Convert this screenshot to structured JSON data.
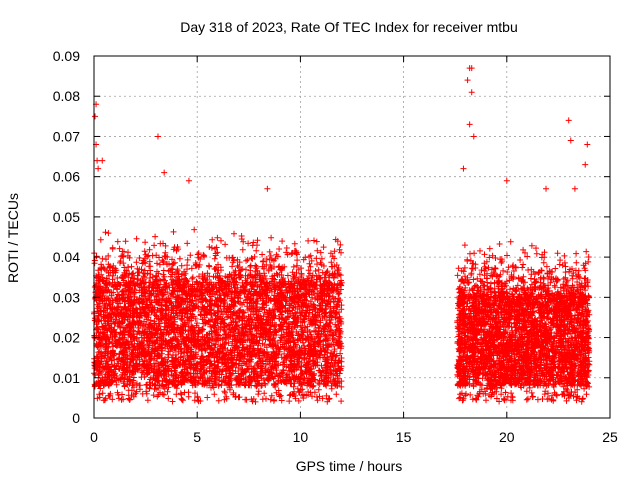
{
  "chart_data": {
    "type": "scatter",
    "title": "Day 318 of 2023, Rate Of TEC Index for receiver mtbu",
    "xlabel": "GPS time / hours",
    "ylabel": "ROTI / TECUs",
    "xlim": [
      0,
      25
    ],
    "ylim": [
      0,
      0.09
    ],
    "xticks": [
      "0",
      "5",
      "10",
      "15",
      "20",
      "25"
    ],
    "yticks": [
      "0",
      "0.01",
      "0.02",
      "0.03",
      "0.04",
      "0.05",
      "0.06",
      "0.07",
      "0.08",
      "0.09"
    ],
    "grid": true,
    "marker": "plus",
    "color": "#ff0000",
    "segments": [
      {
        "x_start": 0.0,
        "x_end": 12.0,
        "typical_low": 0.008,
        "typical_high": 0.033
      },
      {
        "x_start": 17.6,
        "x_end": 24.0,
        "typical_low": 0.008,
        "typical_high": 0.03
      }
    ],
    "notable_points": [
      {
        "x": 0.05,
        "y": 0.075
      },
      {
        "x": 0.1,
        "y": 0.078
      },
      {
        "x": 0.1,
        "y": 0.068
      },
      {
        "x": 0.15,
        "y": 0.064
      },
      {
        "x": 0.2,
        "y": 0.062
      },
      {
        "x": 0.4,
        "y": 0.064
      },
      {
        "x": 3.1,
        "y": 0.07
      },
      {
        "x": 3.4,
        "y": 0.061
      },
      {
        "x": 4.6,
        "y": 0.059
      },
      {
        "x": 8.4,
        "y": 0.057
      },
      {
        "x": 18.2,
        "y": 0.087
      },
      {
        "x": 18.3,
        "y": 0.087
      },
      {
        "x": 18.3,
        "y": 0.081
      },
      {
        "x": 18.1,
        "y": 0.084
      },
      {
        "x": 18.2,
        "y": 0.073
      },
      {
        "x": 18.4,
        "y": 0.07
      },
      {
        "x": 17.9,
        "y": 0.062
      },
      {
        "x": 20.0,
        "y": 0.059
      },
      {
        "x": 21.9,
        "y": 0.057
      },
      {
        "x": 23.0,
        "y": 0.074
      },
      {
        "x": 23.1,
        "y": 0.069
      },
      {
        "x": 23.9,
        "y": 0.068
      },
      {
        "x": 23.8,
        "y": 0.063
      },
      {
        "x": 23.3,
        "y": 0.057
      }
    ]
  }
}
